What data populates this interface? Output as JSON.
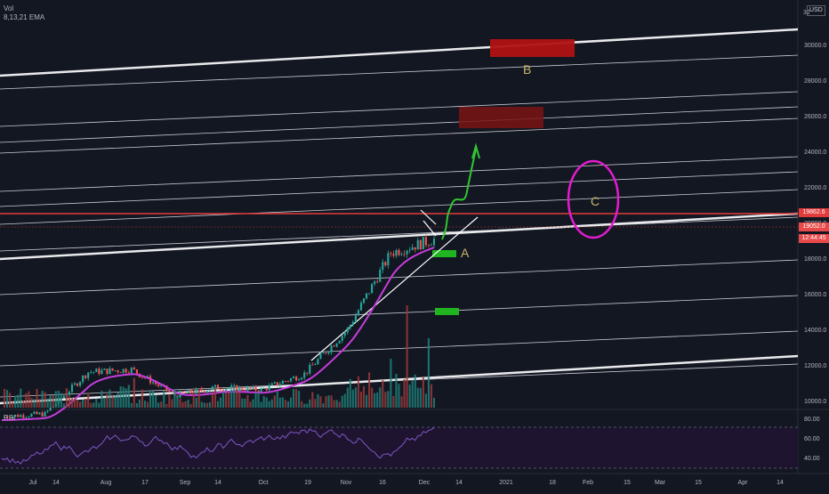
{
  "header": {
    "volume_label": "Vol",
    "ema_label": "8,13,21 EMA",
    "scale_top": "32",
    "currency": "USD"
  },
  "rsi": {
    "label": "RSI",
    "ticks": [
      "80.00",
      "60.00",
      "40.00"
    ]
  },
  "price_tags": {
    "resistance": "19862.6",
    "last_price": "19052.0",
    "countdown": "12:44:45"
  },
  "annotations": {
    "zone_b": "B",
    "zone_a": "A",
    "zone_c": "C"
  },
  "colors": {
    "background": "#131722",
    "up_candle": "#26a69a",
    "down_candle": "#ef5350",
    "ema": "#c43ddb",
    "resistance": "#e33b3b",
    "annotation_green": "#33c433",
    "annotation_magenta": "#e41bd0",
    "channel": "#ffffff"
  },
  "chart_data": {
    "type": "candlestick",
    "symbol_currency": "USD",
    "y_axis": {
      "ticks": [
        30000,
        28000,
        26000,
        24000,
        22000,
        20000,
        18000,
        16000,
        14000,
        12000,
        10000
      ],
      "tick_labels": [
        "30000.0",
        "28000.0",
        "26000.0",
        "24000.0",
        "22000.0",
        "20000.0",
        "18000.0",
        "16000.0",
        "14000.0",
        "12000.0",
        "10000.0"
      ]
    },
    "x_axis": {
      "tick_labels": [
        "Jul",
        "14",
        "Aug",
        "17",
        "Sep",
        "14",
        "Oct",
        "19",
        "Nov",
        "16",
        "Dec",
        "14",
        "2021",
        "18",
        "Feb",
        "15",
        "Mar",
        "15",
        "Apr",
        "14"
      ]
    },
    "weekly_close_path": [
      [
        "Jul",
        9100
      ],
      [
        "14",
        9250
      ],
      [
        "Aug",
        11600
      ],
      [
        "17",
        11750
      ],
      [
        "Sep",
        10300
      ],
      [
        "14",
        10750
      ],
      [
        "Oct",
        10600
      ],
      [
        "19",
        11500
      ],
      [
        "Nov",
        14000
      ],
      [
        "16",
        18300
      ],
      [
        "Dec",
        19050
      ]
    ],
    "resistance_level": 19862.6,
    "last_price": 19052.0,
    "zones": [
      {
        "label": "B",
        "low": 29300,
        "high": 30300
      },
      {
        "label": "",
        "low": 25300,
        "high": 26500
      }
    ],
    "rsi_levels": [
      80,
      60,
      40
    ]
  }
}
